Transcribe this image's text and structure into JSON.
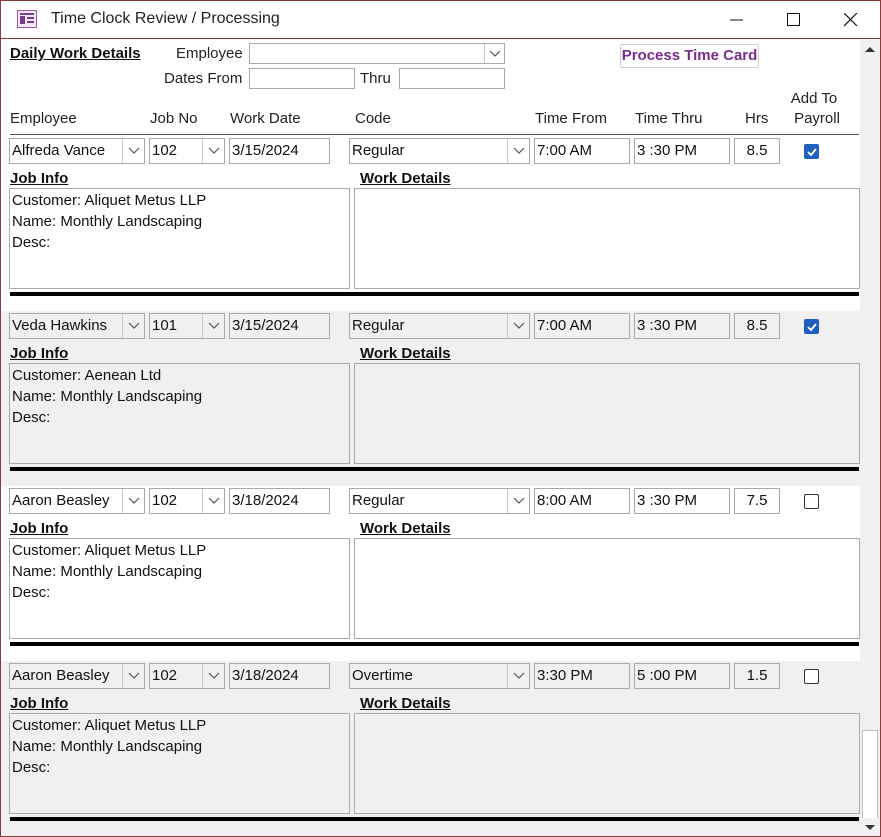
{
  "window": {
    "title": "Time Clock Review / Processing",
    "controls": [
      "minimize",
      "maximize",
      "close"
    ]
  },
  "header": {
    "section_title": "Daily Work Details",
    "employee_label": "Employee",
    "employee_value": "",
    "dates_from_label": "Dates From",
    "dates_from_value": "",
    "thru_label": "Thru",
    "thru_value": "",
    "process_button": "Process Time Card"
  },
  "columns": {
    "employee": "Employee",
    "job_no": "Job No",
    "work_date": "Work Date",
    "code": "Code",
    "time_from": "Time From",
    "time_thru": "Time Thru",
    "hrs": "Hrs",
    "add_to_payroll_1": "Add To",
    "add_to_payroll_2": "Payroll"
  },
  "labels": {
    "job_info": "Job Info",
    "work_details": "Work Details"
  },
  "records": [
    {
      "employee": "Alfreda Vance",
      "job_no": "102",
      "work_date": "3/15/2024",
      "code": "Regular",
      "time_from": "7:00 AM",
      "time_thru": "3 :30 PM",
      "hrs": "8.5",
      "add_to_payroll": true,
      "customer": "Customer: Aliquet Metus LLP",
      "name": "Name: Monthly Landscaping",
      "desc": "Desc:",
      "work_details": ""
    },
    {
      "employee": "Veda Hawkins",
      "job_no": "101",
      "work_date": "3/15/2024",
      "code": "Regular",
      "time_from": "7:00 AM",
      "time_thru": "3 :30 PM",
      "hrs": "8.5",
      "add_to_payroll": true,
      "customer": "Customer: Aenean Ltd",
      "name": "Name: Monthly Landscaping",
      "desc": "Desc:",
      "work_details": ""
    },
    {
      "employee": "Aaron Beasley",
      "job_no": "102",
      "work_date": "3/18/2024",
      "code": "Regular",
      "time_from": "8:00 AM",
      "time_thru": "3 :30 PM",
      "hrs": "7.5",
      "add_to_payroll": false,
      "customer": "Customer: Aliquet Metus LLP",
      "name": "Name: Monthly Landscaping",
      "desc": "Desc:",
      "work_details": ""
    },
    {
      "employee": "Aaron Beasley",
      "job_no": "102",
      "work_date": "3/18/2024",
      "code": "Overtime",
      "time_from": "3:30 PM",
      "time_thru": "5 :00 PM",
      "hrs": "1.5",
      "add_to_payroll": false,
      "customer": "Customer: Aliquet Metus LLP",
      "name": "Name: Monthly Landscaping",
      "desc": "Desc:",
      "work_details": ""
    }
  ],
  "colors": {
    "accent": "#7b2c8e",
    "checkbox_checked": "#1f5fbf",
    "alt_row": "#f0f0f0",
    "window_border": "#8a3a3a"
  }
}
